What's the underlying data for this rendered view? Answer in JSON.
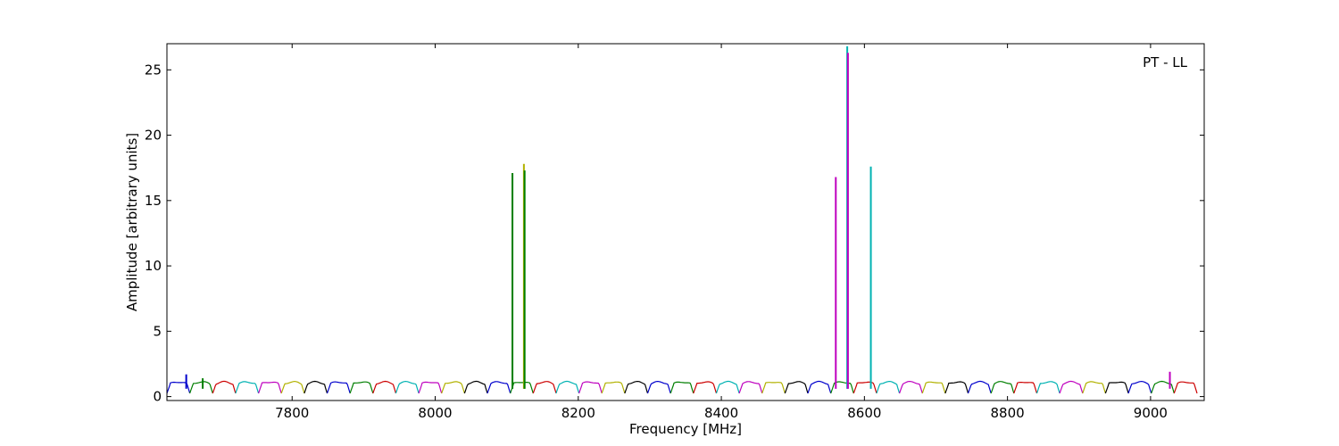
{
  "chart_data": {
    "type": "line",
    "title": "",
    "annotation": "PT - LL",
    "xlabel": "Frequency [MHz]",
    "ylabel": "Amplitude [arbitrary units]",
    "xlim": [
      7625,
      9075
    ],
    "ylim": [
      -0.3,
      27
    ],
    "xticks": [
      7800,
      8000,
      8200,
      8400,
      8600,
      8800,
      9000
    ],
    "yticks": [
      0,
      5,
      10,
      15,
      20,
      25
    ],
    "grid": false,
    "legend": "none",
    "band_width_mhz": 32,
    "color_cycle": [
      "#0000cc",
      "#007f00",
      "#cc0000",
      "#00b2b2",
      "#bf00bf",
      "#b2b200",
      "#000000"
    ],
    "bands_start_mhz": [
      7625,
      7657,
      7689,
      7721,
      7753,
      7785,
      7817,
      7849,
      7881,
      7913,
      7945,
      7977,
      8009,
      8041,
      8073,
      8105,
      8137,
      8169,
      8201,
      8233,
      8265,
      8297,
      8329,
      8361,
      8393,
      8425,
      8457,
      8489,
      8521,
      8553,
      8585,
      8617,
      8649,
      8681,
      8713,
      8745,
      8777,
      8809,
      8841,
      8873,
      8905,
      8937,
      8969,
      9001,
      9033
    ],
    "spikes": [
      {
        "x": 7652,
        "y": 1.7,
        "color": "#0000cc"
      },
      {
        "x": 7675,
        "y": 1.4,
        "color": "#007f00"
      },
      {
        "x": 8108,
        "y": 17.1,
        "color": "#007f00"
      },
      {
        "x": 8124,
        "y": 17.8,
        "color": "#b2b200"
      },
      {
        "x": 8125,
        "y": 17.3,
        "color": "#007f00"
      },
      {
        "x": 8560,
        "y": 16.8,
        "color": "#bf00bf"
      },
      {
        "x": 8576,
        "y": 26.8,
        "color": "#00b2b2"
      },
      {
        "x": 8577,
        "y": 26.3,
        "color": "#bf00bf"
      },
      {
        "x": 8609,
        "y": 17.6,
        "color": "#00b2b2"
      },
      {
        "x": 9027,
        "y": 1.9,
        "color": "#bf00bf"
      }
    ]
  }
}
